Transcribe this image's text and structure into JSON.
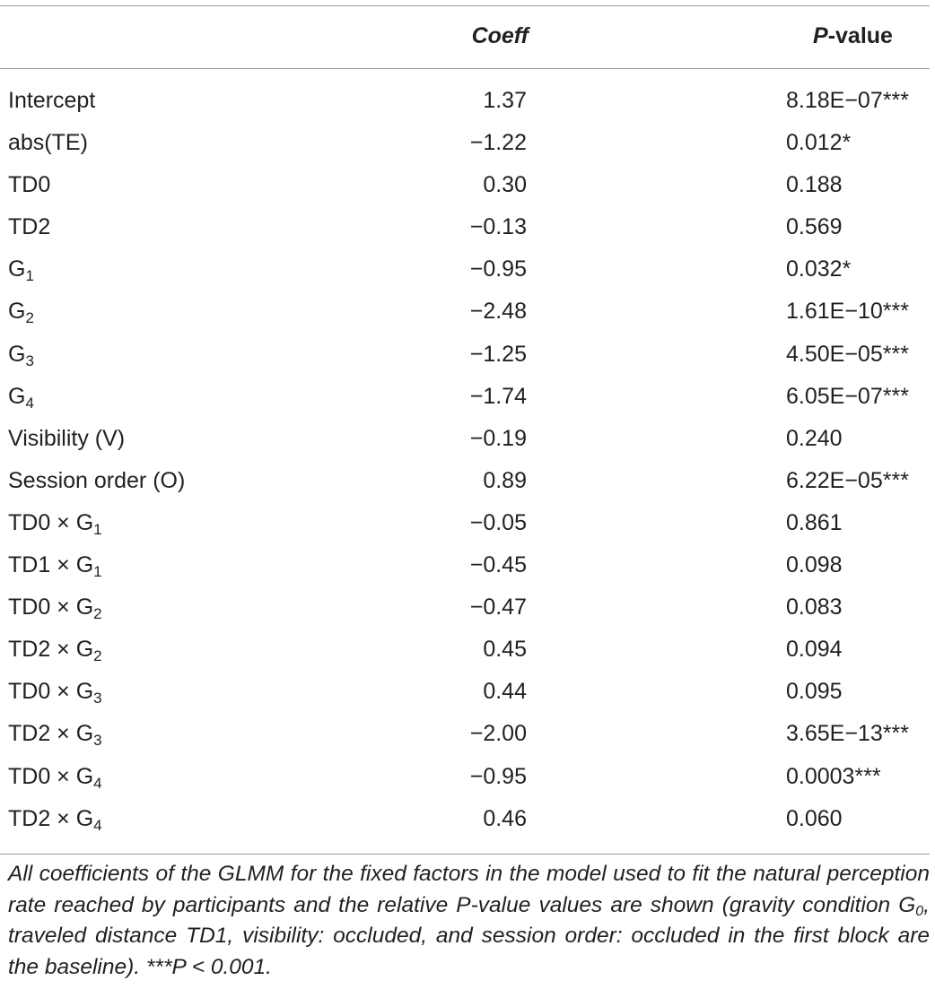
{
  "table": {
    "header": {
      "coeff": "Coeff",
      "pvalue_p": "P",
      "pvalue_rest": "-value"
    },
    "rows": [
      {
        "term": "Intercept",
        "coeff": "1.37",
        "pvalue": "8.18E−07***"
      },
      {
        "term": "abs(TE)",
        "coeff": "−1.22",
        "pvalue": "0.012*"
      },
      {
        "term": "TD0",
        "coeff": "0.30",
        "pvalue": "0.188"
      },
      {
        "term": "TD2",
        "coeff": "−0.13",
        "pvalue": "0.569"
      },
      {
        "term": "G",
        "sub": "1",
        "coeff": "−0.95",
        "pvalue": "0.032*"
      },
      {
        "term": "G",
        "sub": "2",
        "coeff": "−2.48",
        "pvalue": "1.61E−10***"
      },
      {
        "term": "G",
        "sub": "3",
        "coeff": "−1.25",
        "pvalue": "4.50E−05***"
      },
      {
        "term": "G",
        "sub": "4",
        "coeff": "−1.74",
        "pvalue": "6.05E−07***"
      },
      {
        "term": "Visibility (V)",
        "coeff": "−0.19",
        "pvalue": "0.240"
      },
      {
        "term": "Session order (O)",
        "coeff": "0.89",
        "pvalue": "6.22E−05***"
      },
      {
        "term": "TD0 × G",
        "sub": "1",
        "coeff": "−0.05",
        "pvalue": "0.861"
      },
      {
        "term": "TD1 × G",
        "sub": "1",
        "coeff": "−0.45",
        "pvalue": "0.098"
      },
      {
        "term": "TD0 × G",
        "sub": "2",
        "coeff": "−0.47",
        "pvalue": "0.083"
      },
      {
        "term": "TD2 × G",
        "sub": "2",
        "coeff": "0.45",
        "pvalue": "0.094"
      },
      {
        "term": "TD0 × G",
        "sub": "3",
        "coeff": "0.44",
        "pvalue": "0.095"
      },
      {
        "term": "TD2 × G",
        "sub": "3",
        "coeff": "−2.00",
        "pvalue": "3.65E−13***"
      },
      {
        "term": "TD0 × G",
        "sub": "4",
        "coeff": "−0.95",
        "pvalue": "0.0003***"
      },
      {
        "term": "TD2 × G",
        "sub": "4",
        "coeff": "0.46",
        "pvalue": "0.060"
      }
    ]
  },
  "caption": {
    "part1": "All coefficients of the GLMM for the fixed factors in the model used to fit the natural perception rate reached by participants and the relative P-value values are shown (gravity condition G",
    "sub0": "0",
    "part2": ", traveled distance TD1, visibility: occluded, and session order: occluded in the first block are the baseline). ***P < 0.001."
  }
}
